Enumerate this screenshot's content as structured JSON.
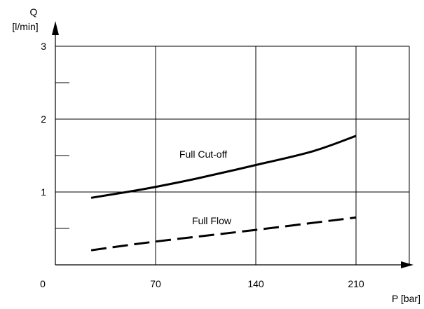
{
  "chart_data": {
    "type": "line",
    "title": "",
    "xlabel": "P [bar]",
    "ylabel_line1": "Q",
    "ylabel_line2": "[l/min]",
    "x_ticks": [
      0,
      70,
      140,
      210
    ],
    "y_ticks": [
      1,
      2,
      3
    ],
    "y_minor_ticks": [
      0.5,
      1.5,
      2.5
    ],
    "xlim": [
      0,
      235
    ],
    "ylim": [
      0,
      3.1
    ],
    "grid": true,
    "legend": "none",
    "series": [
      {
        "name": "Full Cut-off",
        "style": "solid",
        "x": [
          25,
          50,
          70,
          100,
          140,
          180,
          210
        ],
        "y": [
          0.92,
          1.0,
          1.07,
          1.19,
          1.37,
          1.56,
          1.77
        ]
      },
      {
        "name": "Full Flow",
        "style": "dashed",
        "x": [
          25,
          70,
          140,
          210
        ],
        "y": [
          0.2,
          0.32,
          0.48,
          0.65
        ]
      }
    ]
  }
}
